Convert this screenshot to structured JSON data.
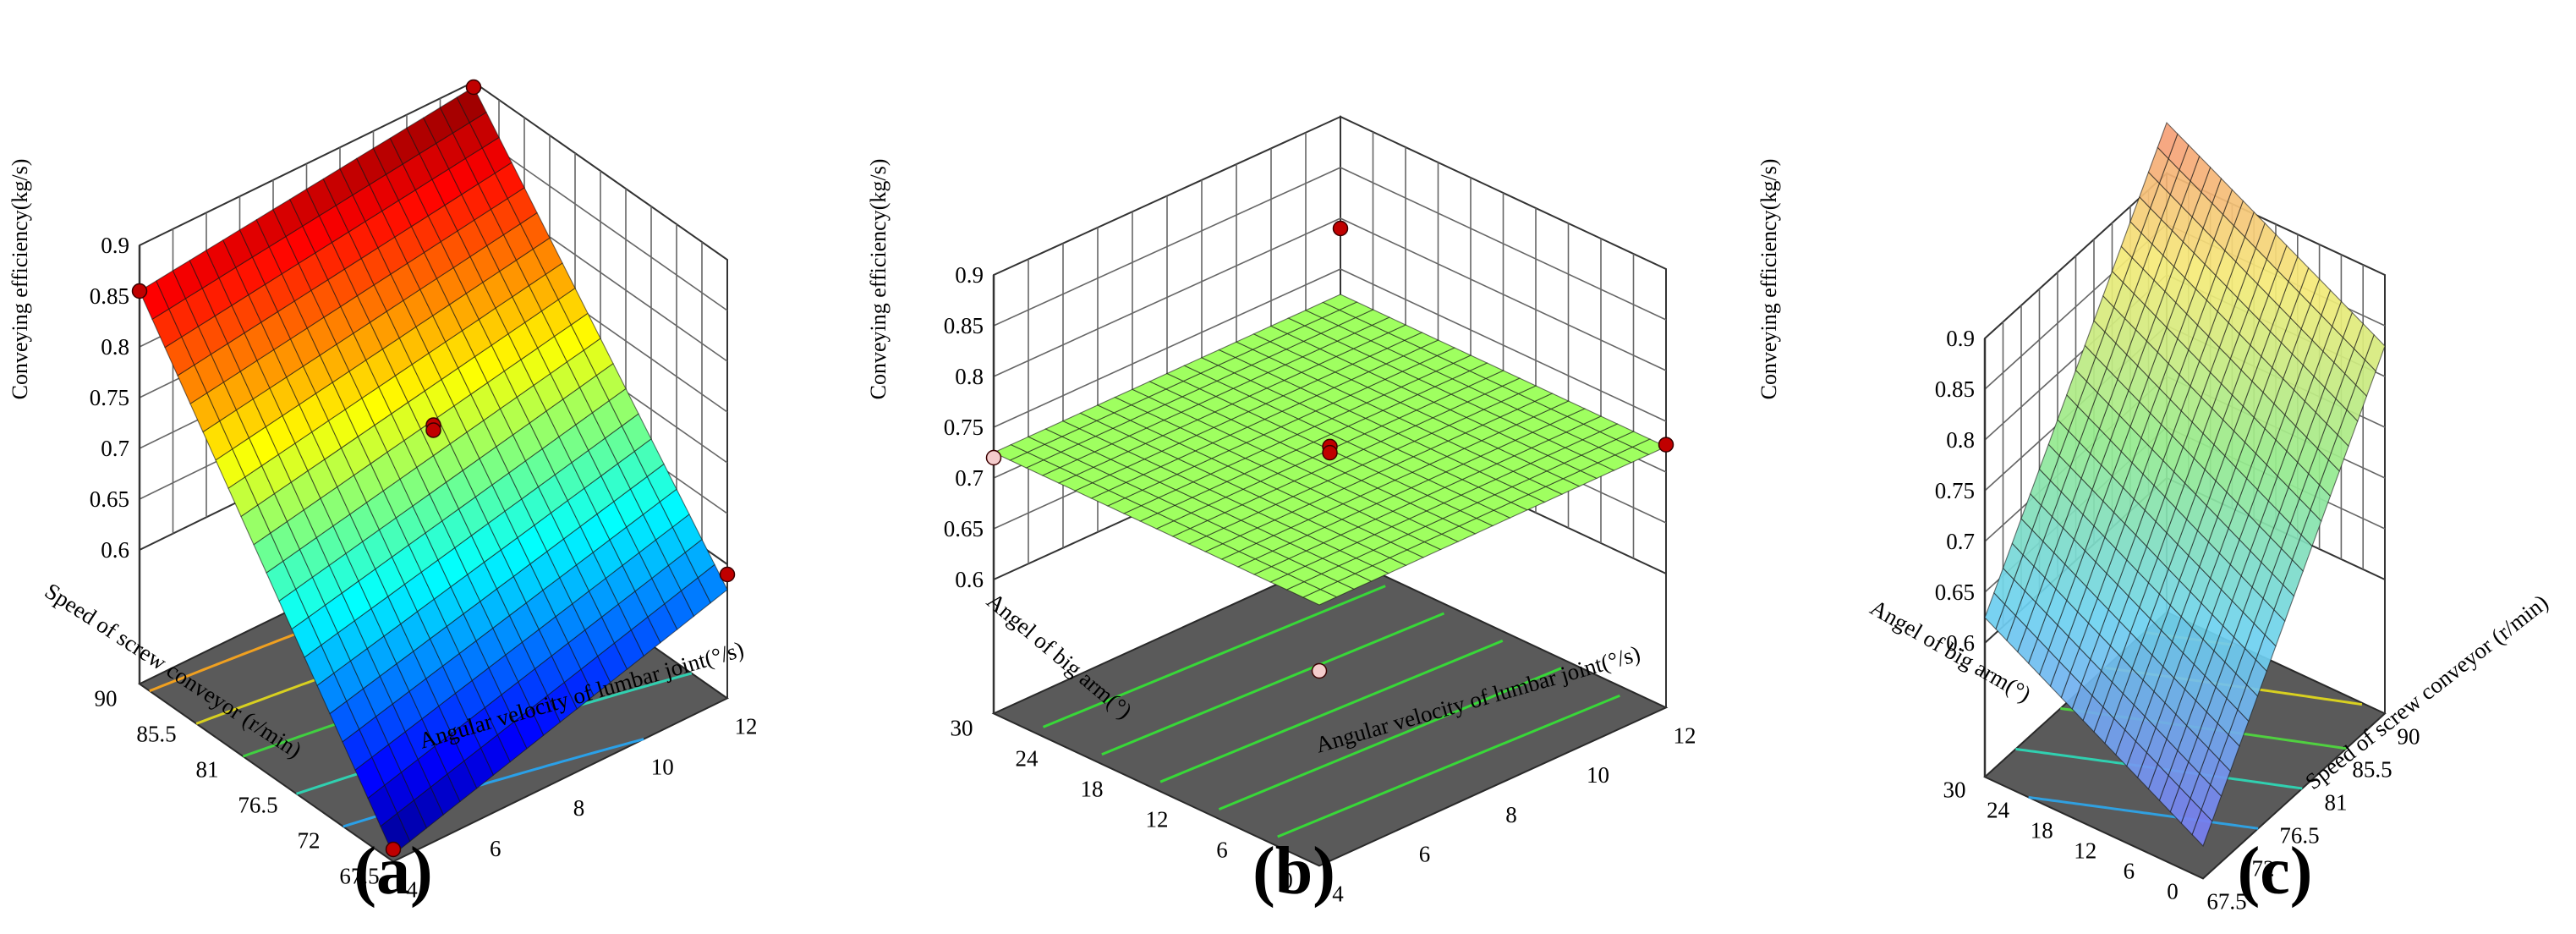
{
  "chart_data": [
    {
      "type": "surface",
      "panel": "(a)",
      "zlabel": "Conveying efficiency(kg/s)",
      "zticks": [
        0.6,
        0.65,
        0.7,
        0.75,
        0.8,
        0.85,
        0.9
      ],
      "zlim": [
        0.6,
        0.9
      ],
      "xlabel": "Angular velocity of lumbar joint(°/s)",
      "xticks": [
        4,
        6,
        8,
        10,
        12
      ],
      "xlim": [
        4,
        12
      ],
      "ylabel": "Speed of screw conveyor (r/min)",
      "yticks": [
        67.5,
        72,
        76.5,
        81,
        85.5,
        90
      ],
      "ylim": [
        67.5,
        90
      ],
      "surface_corners": [
        {
          "x": 4,
          "y": 67.5,
          "z": 0.475
        },
        {
          "x": 4,
          "y": 90,
          "z": 0.855
        },
        {
          "x": 12,
          "y": 90,
          "z": 0.895
        },
        {
          "x": 12,
          "y": 67.5,
          "z": 0.575
        }
      ],
      "design_points": [
        {
          "x": 4,
          "y": 90,
          "z": 0.855
        },
        {
          "x": 12,
          "y": 90,
          "z": 0.895
        },
        {
          "x": 8,
          "y": 78.75,
          "z": 0.73
        },
        {
          "x": 8,
          "y": 78.75,
          "z": 0.725
        },
        {
          "x": 12,
          "y": 67.5,
          "z": 0.59
        },
        {
          "x": 4,
          "y": 67.5,
          "z": 0.48
        }
      ],
      "colormap": "jet",
      "grid": true
    },
    {
      "type": "surface",
      "panel": "(b)",
      "zlabel": "Conveying efficiency(kg/s)",
      "zticks": [
        0.6,
        0.65,
        0.7,
        0.75,
        0.8,
        0.85,
        0.9
      ],
      "zlim": [
        0.6,
        0.9
      ],
      "xlabel": "Angular velocity of lumbar joint(°/s)",
      "xticks": [
        4,
        6,
        8,
        10,
        12
      ],
      "xlim": [
        4,
        12
      ],
      "ylabel": "Angel of big arm(°)",
      "yticks": [
        0,
        6,
        12,
        18,
        24,
        30
      ],
      "ylim": [
        0,
        30
      ],
      "surface_corners": [
        {
          "x": 4,
          "y": 0,
          "z": 0.725
        },
        {
          "x": 4,
          "y": 30,
          "z": 0.725
        },
        {
          "x": 12,
          "y": 30,
          "z": 0.725
        },
        {
          "x": 12,
          "y": 0,
          "z": 0.725
        }
      ],
      "design_points": [
        {
          "x": 12,
          "y": 30,
          "z": 0.79
        },
        {
          "x": 8,
          "y": 15,
          "z": 0.728
        },
        {
          "x": 8,
          "y": 15,
          "z": 0.722
        },
        {
          "x": 12,
          "y": 0,
          "z": 0.727
        },
        {
          "x": 4,
          "y": 30,
          "z": 0.72
        },
        {
          "x": 4,
          "y": 0,
          "z": 0.66
        }
      ],
      "colormap": "jet",
      "grid": true
    },
    {
      "type": "surface",
      "panel": "(c)",
      "zlabel": "Conveying efficiency(kg/s)",
      "zticks": [
        0.6,
        0.65,
        0.7,
        0.75,
        0.8,
        0.85,
        0.9
      ],
      "zlim": [
        0.6,
        0.9
      ],
      "xlabel": "Speed of screw conveyor (r/min)",
      "xticks": [
        67.5,
        72,
        76.5,
        81,
        85.5,
        90
      ],
      "xlim": [
        67.5,
        90
      ],
      "ylabel": "Angel of big arm(°)",
      "yticks": [
        0,
        6,
        12,
        18,
        24,
        30
      ],
      "ylim": [
        0,
        30
      ],
      "surface_corners": [
        {
          "x": 67.5,
          "y": 0,
          "z": 0.5
        },
        {
          "x": 67.5,
          "y": 30,
          "z": 0.625
        },
        {
          "x": 90,
          "y": 30,
          "z": 0.95
        },
        {
          "x": 90,
          "y": 0,
          "z": 0.83
        }
      ],
      "colormap": "jet-translucent",
      "grid": true
    }
  ]
}
